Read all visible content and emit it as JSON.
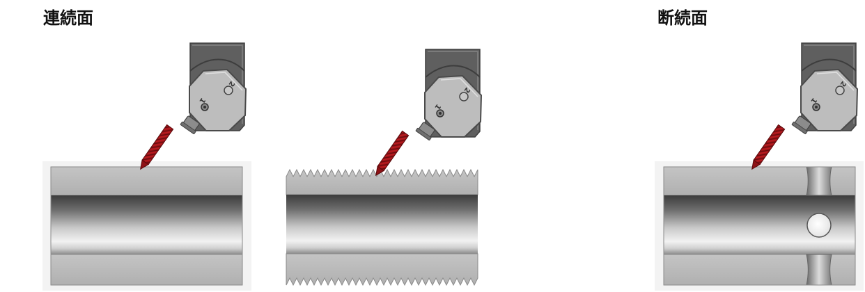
{
  "labels": {
    "continuous": "連続面",
    "interrupted": "断続面"
  },
  "tool_markings": {
    "corner_1": "1",
    "corner_2": "2"
  },
  "colors": {
    "tool_tip": "#a3161a",
    "holder": "#5f5f5f",
    "insert": "#bdbdbd",
    "workpiece": "#b8b8b8",
    "background_panel": "#f3f3f3"
  }
}
